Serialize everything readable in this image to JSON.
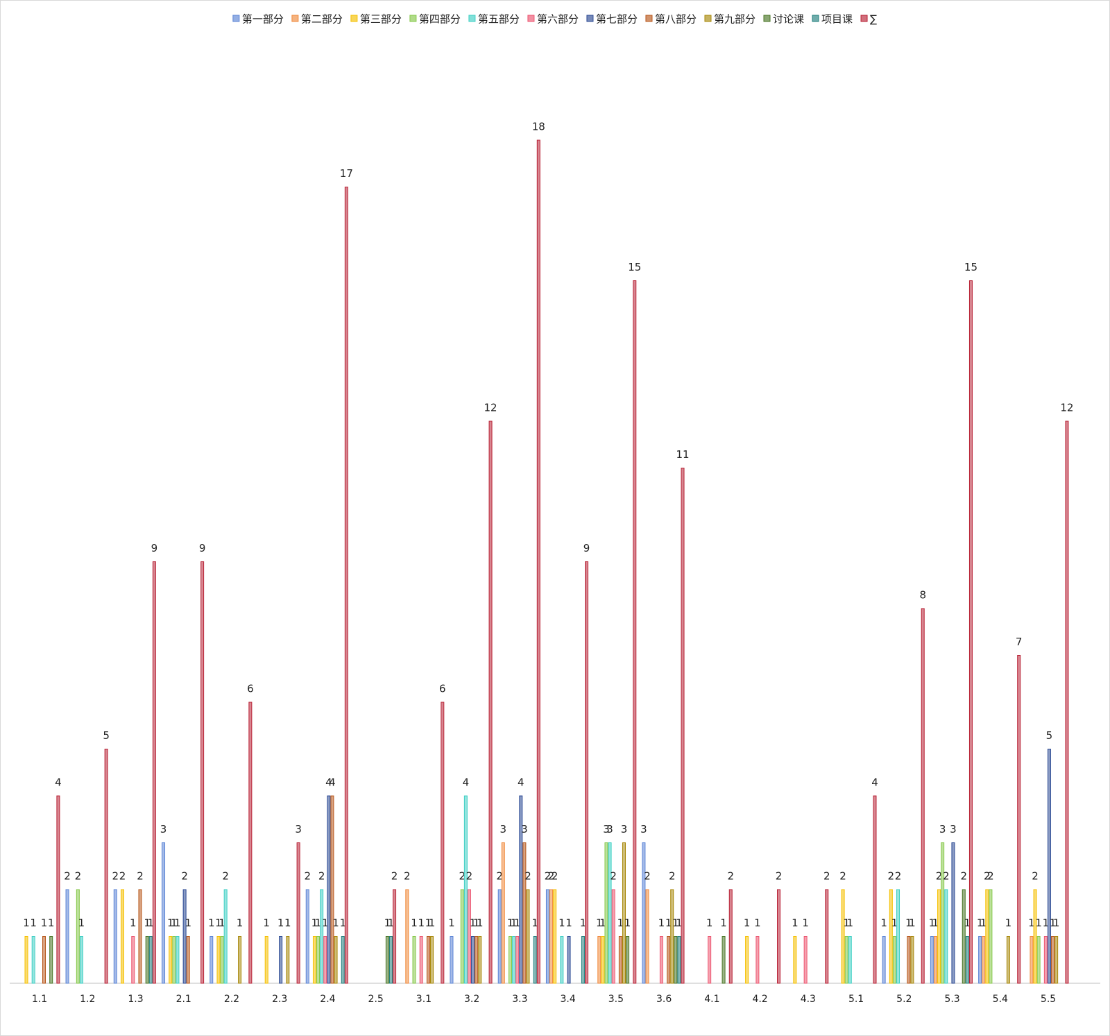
{
  "chart_data": {
    "type": "bar",
    "categories": [
      "1.1",
      "1.2",
      "1.3",
      "2.1",
      "2.2",
      "2.3",
      "2.4",
      "2.5",
      "3.1",
      "3.2",
      "3.3",
      "3.4",
      "3.5",
      "3.6",
      "4.1",
      "4.2",
      "4.3",
      "5.1",
      "5.2",
      "5.3",
      "5.4",
      "5.5"
    ],
    "ylim": [
      0,
      20
    ],
    "series": [
      {
        "name": "第一部分",
        "color": "#5b84d6",
        "values": [
          null,
          2,
          2,
          3,
          1,
          null,
          2,
          null,
          null,
          1,
          2,
          2,
          null,
          3,
          null,
          null,
          null,
          null,
          1,
          1,
          1,
          null
        ]
      },
      {
        "name": "第二部分",
        "color": "#f08a3c",
        "values": [
          null,
          null,
          null,
          null,
          null,
          null,
          null,
          null,
          2,
          null,
          3,
          2,
          1,
          2,
          null,
          null,
          null,
          null,
          null,
          1,
          1,
          1
        ]
      },
      {
        "name": "第三部分",
        "color": "#f5c000",
        "values": [
          1,
          null,
          2,
          1,
          1,
          1,
          1,
          null,
          null,
          null,
          null,
          2,
          1,
          null,
          null,
          1,
          1,
          2,
          2,
          2,
          2,
          2
        ]
      },
      {
        "name": "第四部分",
        "color": "#86c84a",
        "values": [
          null,
          2,
          null,
          1,
          1,
          null,
          1,
          null,
          1,
          2,
          1,
          null,
          3,
          null,
          null,
          null,
          null,
          1,
          1,
          3,
          2,
          1
        ]
      },
      {
        "name": "第五部分",
        "color": "#3fcfc4",
        "values": [
          1,
          1,
          null,
          1,
          2,
          null,
          2,
          null,
          null,
          4,
          1,
          1,
          3,
          null,
          null,
          null,
          null,
          1,
          2,
          2,
          null,
          null
        ]
      },
      {
        "name": "第六部分",
        "color": "#ec5570",
        "values": [
          null,
          null,
          1,
          null,
          null,
          null,
          1,
          null,
          1,
          2,
          1,
          null,
          2,
          1,
          1,
          1,
          1,
          null,
          null,
          null,
          null,
          1
        ]
      },
      {
        "name": "第七部分",
        "color": "#2c4a94",
        "values": [
          null,
          null,
          null,
          2,
          null,
          1,
          4,
          null,
          null,
          1,
          4,
          1,
          null,
          null,
          null,
          null,
          null,
          null,
          null,
          3,
          null,
          5
        ]
      },
      {
        "name": "第八部分",
        "color": "#b8581c",
        "values": [
          1,
          null,
          2,
          1,
          null,
          null,
          4,
          null,
          1,
          1,
          3,
          null,
          1,
          1,
          null,
          null,
          null,
          null,
          1,
          null,
          null,
          1
        ]
      },
      {
        "name": "第九部分",
        "color": "#a8880a",
        "values": [
          null,
          null,
          null,
          null,
          1,
          1,
          1,
          null,
          1,
          1,
          2,
          null,
          3,
          2,
          null,
          null,
          null,
          null,
          1,
          null,
          1,
          1
        ]
      },
      {
        "name": "讨论课",
        "color": "#4a7626",
        "values": [
          1,
          null,
          1,
          null,
          null,
          null,
          null,
          1,
          null,
          null,
          null,
          null,
          1,
          1,
          1,
          null,
          null,
          null,
          null,
          2,
          null,
          null
        ]
      },
      {
        "name": "项目课",
        "color": "#22807e",
        "values": [
          null,
          null,
          1,
          null,
          null,
          null,
          1,
          1,
          null,
          null,
          1,
          1,
          null,
          1,
          null,
          null,
          null,
          null,
          null,
          1,
          null,
          null
        ]
      },
      {
        "name": "∑",
        "color": "#b82236",
        "values": [
          4,
          5,
          9,
          9,
          6,
          3,
          17,
          2,
          6,
          12,
          18,
          9,
          15,
          11,
          2,
          2,
          2,
          4,
          8,
          15,
          7,
          12
        ]
      }
    ]
  }
}
